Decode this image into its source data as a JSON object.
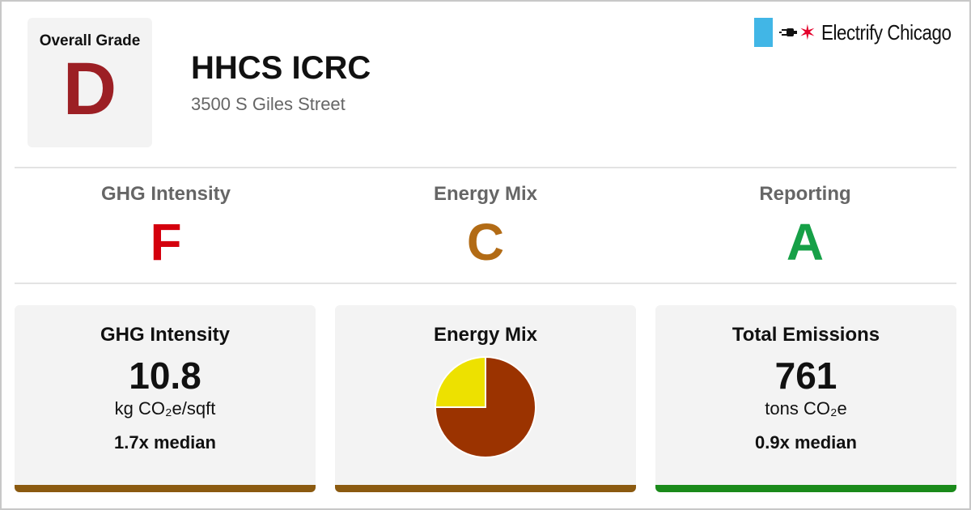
{
  "header": {
    "overall_grade_label": "Overall Grade",
    "overall_grade": "D",
    "overall_grade_color": "#9c1f24",
    "building_name": "HHCS ICRC",
    "address": "3500 S Giles Street",
    "logo_text": "Electrify Chicago",
    "logo_star": "✶",
    "logo_flag_color": "#41b6e6",
    "logo_star_color": "#e4002b"
  },
  "grades": [
    {
      "label": "GHG Intensity",
      "letter": "F",
      "color": "#d4000d"
    },
    {
      "label": "Energy Mix",
      "letter": "C",
      "color": "#b26b15"
    },
    {
      "label": "Reporting",
      "letter": "A",
      "color": "#16a047"
    }
  ],
  "cards": {
    "ghg": {
      "title": "GHG Intensity",
      "value": "10.8",
      "unit": "kg CO₂e/sqft",
      "median": "1.7x median",
      "bar_color": "#8b5a10"
    },
    "energy": {
      "title": "Energy Mix",
      "bar_color": "#8b5a10"
    },
    "emissions": {
      "title": "Total Emissions",
      "value": "761",
      "unit": "tons CO₂e",
      "median": "0.9x median",
      "bar_color": "#1a8a1a"
    }
  },
  "chart_data": {
    "type": "pie",
    "slices": [
      {
        "value": 75,
        "color": "#9b3300"
      },
      {
        "value": 25,
        "color": "#ede100"
      }
    ]
  }
}
